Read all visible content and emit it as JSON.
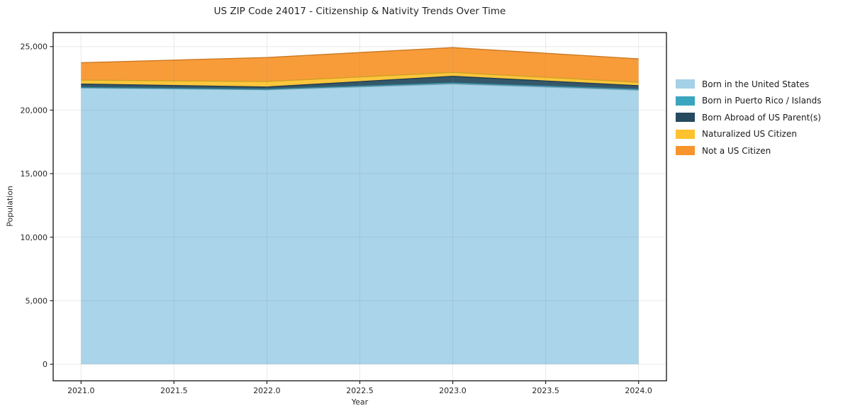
{
  "chart_data": {
    "type": "area",
    "stacked": true,
    "title": "US ZIP Code 24017 - Citizenship & Nativity Trends Over Time",
    "xlabel": "Year",
    "ylabel": "Population",
    "x": [
      2021,
      2022,
      2023,
      2024
    ],
    "series": [
      {
        "name": "Born in the United States",
        "color": "#a4d1e7",
        "values": [
          21750,
          21600,
          22050,
          21570
        ]
      },
      {
        "name": "Born in Puerto Rico / Islands",
        "color": "#3aa5bf",
        "values": [
          30,
          40,
          90,
          70
        ]
      },
      {
        "name": "Born Abroad of US Parent(s)",
        "color": "#264a5f",
        "values": [
          270,
          180,
          520,
          280
        ]
      },
      {
        "name": "Naturalized US Citizen",
        "color": "#fdc22d",
        "values": [
          310,
          430,
          310,
          270
        ]
      },
      {
        "name": "Not a US Citizen",
        "color": "#f7942b",
        "values": [
          1370,
          1890,
          1950,
          1840
        ]
      }
    ],
    "xticks": [
      2021.0,
      2021.5,
      2022.0,
      2022.5,
      2023.0,
      2023.5,
      2024.0
    ],
    "xticklabels": [
      "2021.0",
      "2021.5",
      "2022.0",
      "2022.5",
      "2023.0",
      "2023.5",
      "2024.0"
    ],
    "yticks": [
      0,
      5000,
      10000,
      15000,
      20000,
      25000
    ],
    "yticklabels": [
      "0",
      "5,000",
      "10,000",
      "15,000",
      "20,000",
      "25,000"
    ],
    "xlim": [
      2020.85,
      2024.15
    ],
    "ylim": [
      -1300,
      26100
    ],
    "grid": true,
    "legend_position": "right",
    "fill_opacity": 0.93,
    "grid_color": "rgba(140,140,140,0.18)",
    "spine_color": "#222222",
    "tick_label_color": "#262626"
  }
}
